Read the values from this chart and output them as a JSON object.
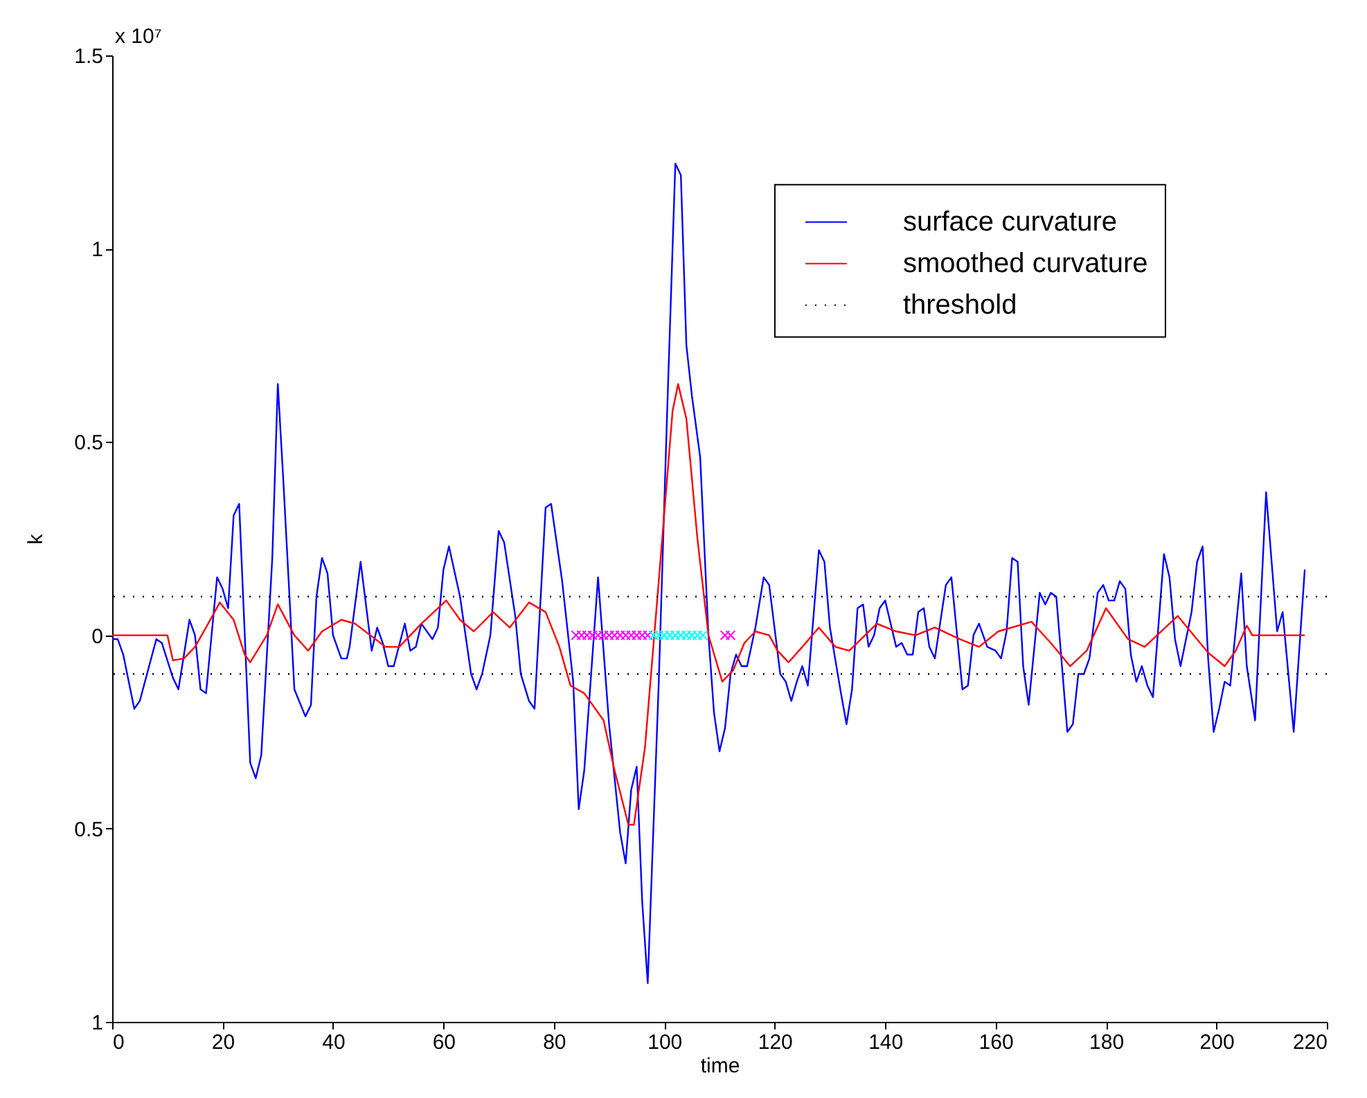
{
  "chart_data": {
    "type": "line",
    "xlabel": "time",
    "ylabel": "k",
    "annotations": [
      "x 10⁷"
    ],
    "xlim": [
      0,
      220
    ],
    "xticks": [
      0,
      20,
      40,
      60,
      80,
      100,
      120,
      140,
      160,
      180,
      200,
      220
    ],
    "ylim": [
      -1,
      1.5
    ],
    "yticks": [
      {
        "value": -1,
        "label": "1"
      },
      {
        "value": -0.5,
        "label": "0.5"
      },
      0,
      0.5,
      1,
      1.5
    ],
    "legend": "top right",
    "grid": false,
    "ref_lines": [
      {
        "axis": "y",
        "value": 0.1,
        "label": "threshold",
        "color": "#000000",
        "line_style": "dotted"
      },
      {
        "axis": "y",
        "value": -0.1,
        "color": "#000000",
        "line_style": "dotted"
      }
    ],
    "series": [
      {
        "name": "surface curvature",
        "color": "#0000ff",
        "line_style": "solid",
        "x": [
          0,
          1,
          2,
          4,
          5,
          8,
          9,
          11,
          12,
          14,
          15,
          16,
          17,
          19,
          20,
          21,
          22,
          23,
          25,
          26,
          27,
          29,
          30,
          31,
          33,
          35,
          36,
          37,
          38,
          39,
          40,
          41.5,
          42.5,
          43,
          45,
          47,
          48,
          49,
          50,
          51,
          53,
          54,
          55,
          56,
          58,
          59,
          60,
          61,
          63,
          65,
          66,
          67,
          68.5,
          70,
          71,
          73,
          74,
          75.5,
          76.5,
          78.5,
          79.5,
          81.5,
          83.5,
          84.5,
          85.5,
          88,
          90,
          92,
          93,
          94,
          95,
          96,
          97,
          99,
          100.5,
          102,
          103,
          104,
          105,
          106.5,
          108,
          109,
          110,
          111,
          112,
          113,
          114,
          115,
          116.5,
          118,
          119,
          121,
          122,
          123,
          124,
          125,
          126,
          128,
          129,
          130,
          132,
          133,
          134,
          135,
          136,
          137,
          138,
          139,
          140,
          141,
          142,
          143,
          144,
          145,
          146,
          147,
          148,
          149,
          151,
          152,
          154,
          155,
          156,
          157,
          158.5,
          160,
          161,
          162,
          163,
          164,
          165,
          166,
          168,
          169,
          170,
          171,
          173,
          174,
          175,
          176,
          177,
          178.5,
          179.5,
          180.5,
          181.5,
          182.5,
          183.5,
          184.5,
          185.5,
          186.5,
          187.5,
          188.5,
          190.5,
          191.5,
          192.5,
          193.5,
          195.5,
          196.5,
          197.5,
          198.5,
          199.5,
          200.5,
          201.5,
          202.5,
          204.5,
          205.5,
          207,
          209,
          211,
          212,
          214,
          216
        ],
        "values": [
          -0.01,
          -0.01,
          -0.05,
          -0.19,
          -0.17,
          -0.01,
          -0.02,
          -0.11,
          -0.14,
          0.04,
          0.0,
          -0.14,
          -0.15,
          0.15,
          0.12,
          0.07,
          0.31,
          0.34,
          -0.33,
          -0.37,
          -0.31,
          0.2,
          0.65,
          0.4,
          -0.14,
          -0.21,
          -0.18,
          0.1,
          0.2,
          0.16,
          0.0,
          -0.06,
          -0.06,
          -0.03,
          0.19,
          -0.04,
          0.02,
          -0.02,
          -0.08,
          -0.08,
          0.03,
          -0.04,
          -0.03,
          0.03,
          -0.01,
          0.02,
          0.17,
          0.23,
          0.1,
          -0.1,
          -0.14,
          -0.1,
          0.0,
          0.27,
          0.24,
          0.05,
          -0.1,
          -0.17,
          -0.19,
          0.33,
          0.34,
          0.14,
          -0.12,
          -0.45,
          -0.35,
          0.15,
          -0.23,
          -0.51,
          -0.59,
          -0.4,
          -0.34,
          -0.69,
          -0.9,
          -0.12,
          0.57,
          1.22,
          1.19,
          0.75,
          0.62,
          0.46,
          0.0,
          -0.2,
          -0.3,
          -0.24,
          -0.1,
          -0.05,
          -0.08,
          -0.08,
          0.02,
          0.15,
          0.13,
          -0.1,
          -0.12,
          -0.17,
          -0.12,
          -0.08,
          -0.13,
          0.22,
          0.19,
          0.02,
          -0.15,
          -0.23,
          -0.14,
          0.07,
          0.08,
          -0.03,
          0.0,
          0.07,
          0.09,
          0.03,
          -0.03,
          -0.02,
          -0.05,
          -0.05,
          0.06,
          0.07,
          -0.03,
          -0.06,
          0.13,
          0.15,
          -0.14,
          -0.13,
          0.0,
          0.03,
          -0.03,
          -0.04,
          -0.06,
          0.01,
          0.2,
          0.19,
          -0.08,
          -0.18,
          0.11,
          0.08,
          0.11,
          0.1,
          -0.25,
          -0.23,
          -0.1,
          -0.1,
          -0.06,
          0.11,
          0.13,
          0.09,
          0.09,
          0.14,
          0.12,
          -0.05,
          -0.12,
          -0.08,
          -0.13,
          -0.16,
          0.21,
          0.15,
          -0.01,
          -0.08,
          0.06,
          0.19,
          0.23,
          -0.06,
          -0.25,
          -0.19,
          -0.12,
          -0.13,
          0.16,
          -0.08,
          -0.22,
          0.37,
          0.01,
          0.06,
          -0.25,
          0.17
        ]
      },
      {
        "name": "smoothed curvature",
        "color": "#ff0000",
        "line_style": "solid",
        "x": [
          0,
          10,
          11,
          13,
          15,
          17,
          19.5,
          22,
          24,
          25,
          28,
          30,
          33,
          35.5,
          38,
          41.5,
          44,
          49.5,
          52,
          56,
          60.5,
          63,
          65.5,
          69,
          72,
          75.5,
          78.5,
          81,
          83,
          85.5,
          89,
          91,
          93.5,
          94.5,
          96.5,
          99,
          101.5,
          102.5,
          104,
          106,
          108,
          110.5,
          112.5,
          114.5,
          116.5,
          119,
          120.5,
          122.5,
          125,
          128,
          131,
          133.5,
          138.5,
          142,
          145.5,
          149,
          153.5,
          157,
          160.5,
          166.5,
          170,
          173.5,
          176.5,
          180,
          184,
          187,
          193,
          198.5,
          201.5,
          203.5,
          205.5,
          206.5,
          216
        ],
        "values": [
          0,
          0,
          -0.065,
          -0.06,
          -0.03,
          0.02,
          0.085,
          0.04,
          -0.05,
          -0.07,
          0.0,
          0.08,
          0.0,
          -0.04,
          0.01,
          0.04,
          0.03,
          -0.03,
          -0.03,
          0.03,
          0.09,
          0.04,
          0.01,
          0.06,
          0.02,
          0.085,
          0.06,
          -0.03,
          -0.13,
          -0.15,
          -0.22,
          -0.35,
          -0.49,
          -0.49,
          -0.29,
          0.14,
          0.58,
          0.65,
          0.56,
          0.25,
          0.0,
          -0.12,
          -0.09,
          -0.02,
          0.01,
          0.0,
          -0.04,
          -0.07,
          -0.03,
          0.02,
          -0.03,
          -0.04,
          0.03,
          0.01,
          0.0,
          0.02,
          -0.01,
          -0.03,
          0.01,
          0.035,
          -0.02,
          -0.08,
          -0.04,
          0.07,
          -0.01,
          -0.03,
          0.05,
          -0.045,
          -0.08,
          -0.04,
          0.025,
          0.0,
          0.0
        ]
      },
      {
        "type": "scatter",
        "marker": "cross",
        "color": "#ff00ff",
        "x": [
          84,
          85,
          86,
          87,
          88,
          89,
          90,
          91,
          92,
          93,
          94,
          95,
          96,
          97,
          111,
          112
        ],
        "values": [
          0,
          0,
          0,
          0,
          0,
          0,
          0,
          0,
          0,
          0,
          0,
          0,
          0,
          0,
          0,
          0
        ]
      },
      {
        "type": "scatter",
        "marker": "cross",
        "color": "#00ffff",
        "x": [
          98,
          99,
          100,
          101,
          102,
          103,
          104,
          105,
          106,
          107
        ],
        "values": [
          0,
          0,
          0,
          0,
          0,
          0,
          0,
          0,
          0,
          0
        ]
      }
    ]
  }
}
